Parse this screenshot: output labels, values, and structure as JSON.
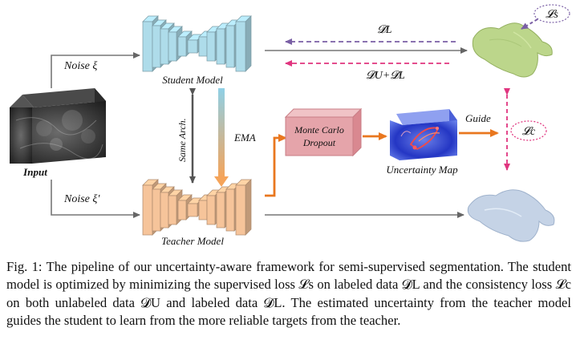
{
  "labels": {
    "input": "Input",
    "noise_top": "Noise ξ",
    "noise_bottom": "Noise ξ′",
    "student_model": "Student Model",
    "teacher_model": "Teacher Model",
    "same_arch": "Same Arch.",
    "ema": "EMA",
    "monte_carlo_line1": "Monte Carlo",
    "monte_carlo_line2": "Dropout",
    "uncertainty_map": "Uncertainty Map",
    "guide": "Guide",
    "loss_s": "𝓛s",
    "loss_c": "𝓛c",
    "d_l": "𝓓L",
    "d_u_plus_d_l": "𝓓U+𝓓L"
  },
  "colors": {
    "student_blue": "#aedcea",
    "teacher_orange": "#f6c49a",
    "arrow_orange": "#e9771f",
    "arrow_purple": "#7a5fa5",
    "arrow_pink": "#e0357f",
    "monte_carlo_box": "#e5a4aa",
    "student_output": "#bcd68b",
    "teacher_output": "#c5d3e6"
  },
  "caption": {
    "fig_label": "Fig. 1:",
    "text": "The pipeline of our uncertainty-aware framework for semi-supervised segmentation. The student model is optimized by minimizing the supervised loss 𝓛s on labeled data 𝓓L and the consistency loss 𝓛c on both unlabeled data 𝓓U and labeled data 𝓓L. The estimated uncertainty from the teacher model guides the student to learn from the more reliable targets from the teacher."
  }
}
